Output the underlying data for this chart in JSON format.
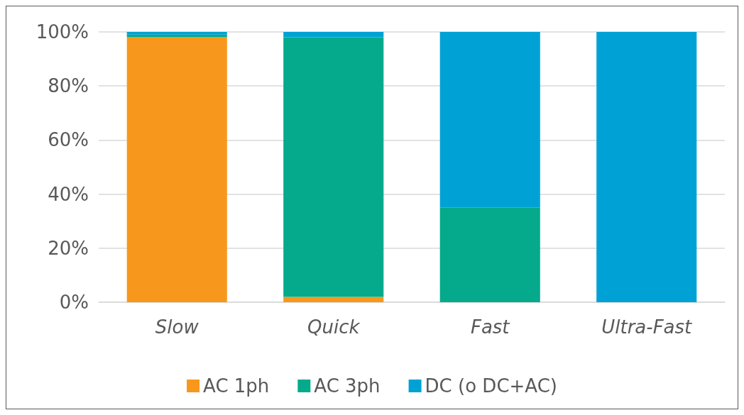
{
  "chart_data": {
    "type": "bar",
    "stacked": true,
    "categories": [
      "Slow",
      "Quick",
      "Fast",
      "Ultra-Fast"
    ],
    "series": [
      {
        "name": "AC 1ph",
        "color": "#f7981d",
        "values": [
          98,
          2,
          0,
          0
        ]
      },
      {
        "name": "AC 3ph",
        "color": "#05aa8d",
        "values": [
          1,
          96,
          35,
          0
        ]
      },
      {
        "name": "DC (o DC+AC)",
        "color": "#00a2d5",
        "values": [
          1,
          2,
          65,
          100
        ]
      }
    ],
    "ylim": [
      0,
      100
    ],
    "yticks": [
      {
        "value": 0,
        "label": "0%"
      },
      {
        "value": 20,
        "label": "20%"
      },
      {
        "value": 40,
        "label": "40%"
      },
      {
        "value": 60,
        "label": "60%"
      },
      {
        "value": 80,
        "label": "80%"
      },
      {
        "value": 100,
        "label": "100%"
      }
    ],
    "grid": "y",
    "legend": "bottom"
  }
}
